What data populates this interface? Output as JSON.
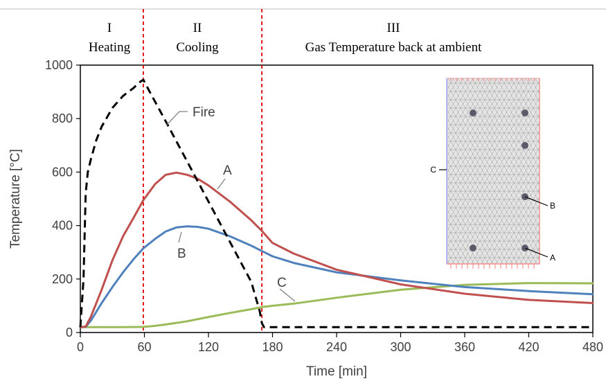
{
  "phases": [
    {
      "numeral": "I",
      "name": "Heating"
    },
    {
      "numeral": "II",
      "name": "Cooling"
    },
    {
      "numeral": "III",
      "name": "Gas Temperature back at ambient"
    }
  ],
  "chart_data": {
    "type": "line",
    "xlabel": "Time [min]",
    "ylabel": "Temperature [°C]",
    "xlim": [
      0,
      480
    ],
    "ylim": [
      0,
      1000
    ],
    "xticks": [
      0,
      60,
      120,
      180,
      240,
      300,
      360,
      420,
      480
    ],
    "yticks": [
      0,
      200,
      400,
      600,
      800,
      1000
    ],
    "grid": false,
    "phase_boundaries": [
      59,
      170
    ],
    "series": [
      {
        "name": "Fire",
        "color": "#000000",
        "dash": "dashed",
        "x": [
          0,
          3,
          5,
          7,
          10,
          15,
          20,
          30,
          40,
          50,
          55,
          59,
          65,
          80,
          100,
          120,
          140,
          160,
          168,
          170,
          172,
          180,
          240,
          300,
          360,
          420,
          480
        ],
        "y": [
          20,
          200,
          520,
          600,
          650,
          720,
          770,
          840,
          885,
          915,
          935,
          945,
          900,
          790,
          640,
          490,
          340,
          190,
          80,
          35,
          20,
          20,
          20,
          20,
          20,
          20,
          20
        ]
      },
      {
        "name": "A",
        "color": "#c0504d",
        "dash": "solid",
        "x": [
          0,
          5,
          10,
          20,
          30,
          40,
          50,
          59,
          70,
          80,
          90,
          100,
          110,
          120,
          140,
          160,
          170,
          180,
          200,
          240,
          300,
          360,
          420,
          480
        ],
        "y": [
          20,
          22,
          60,
          160,
          270,
          360,
          430,
          495,
          555,
          590,
          598,
          590,
          575,
          550,
          490,
          420,
          380,
          335,
          295,
          235,
          180,
          145,
          122,
          110
        ]
      },
      {
        "name": "B",
        "color": "#4f81bd",
        "dash": "solid",
        "x": [
          0,
          5,
          10,
          20,
          30,
          40,
          50,
          59,
          70,
          80,
          90,
          100,
          110,
          120,
          140,
          160,
          170,
          180,
          200,
          240,
          300,
          360,
          420,
          480
        ],
        "y": [
          20,
          21,
          45,
          110,
          170,
          225,
          275,
          315,
          350,
          378,
          393,
          397,
          395,
          388,
          360,
          325,
          305,
          285,
          260,
          225,
          195,
          170,
          155,
          143
        ]
      },
      {
        "name": "C",
        "color": "#9bbb59",
        "dash": "solid",
        "x": [
          0,
          20,
          40,
          59,
          70,
          80,
          100,
          120,
          140,
          160,
          170,
          180,
          200,
          240,
          300,
          360,
          420,
          480
        ],
        "y": [
          20,
          20,
          20,
          21,
          25,
          30,
          42,
          58,
          73,
          87,
          95,
          100,
          108,
          130,
          160,
          178,
          185,
          184
        ]
      }
    ]
  },
  "inset": {
    "points": [
      "A",
      "B",
      "C"
    ]
  }
}
